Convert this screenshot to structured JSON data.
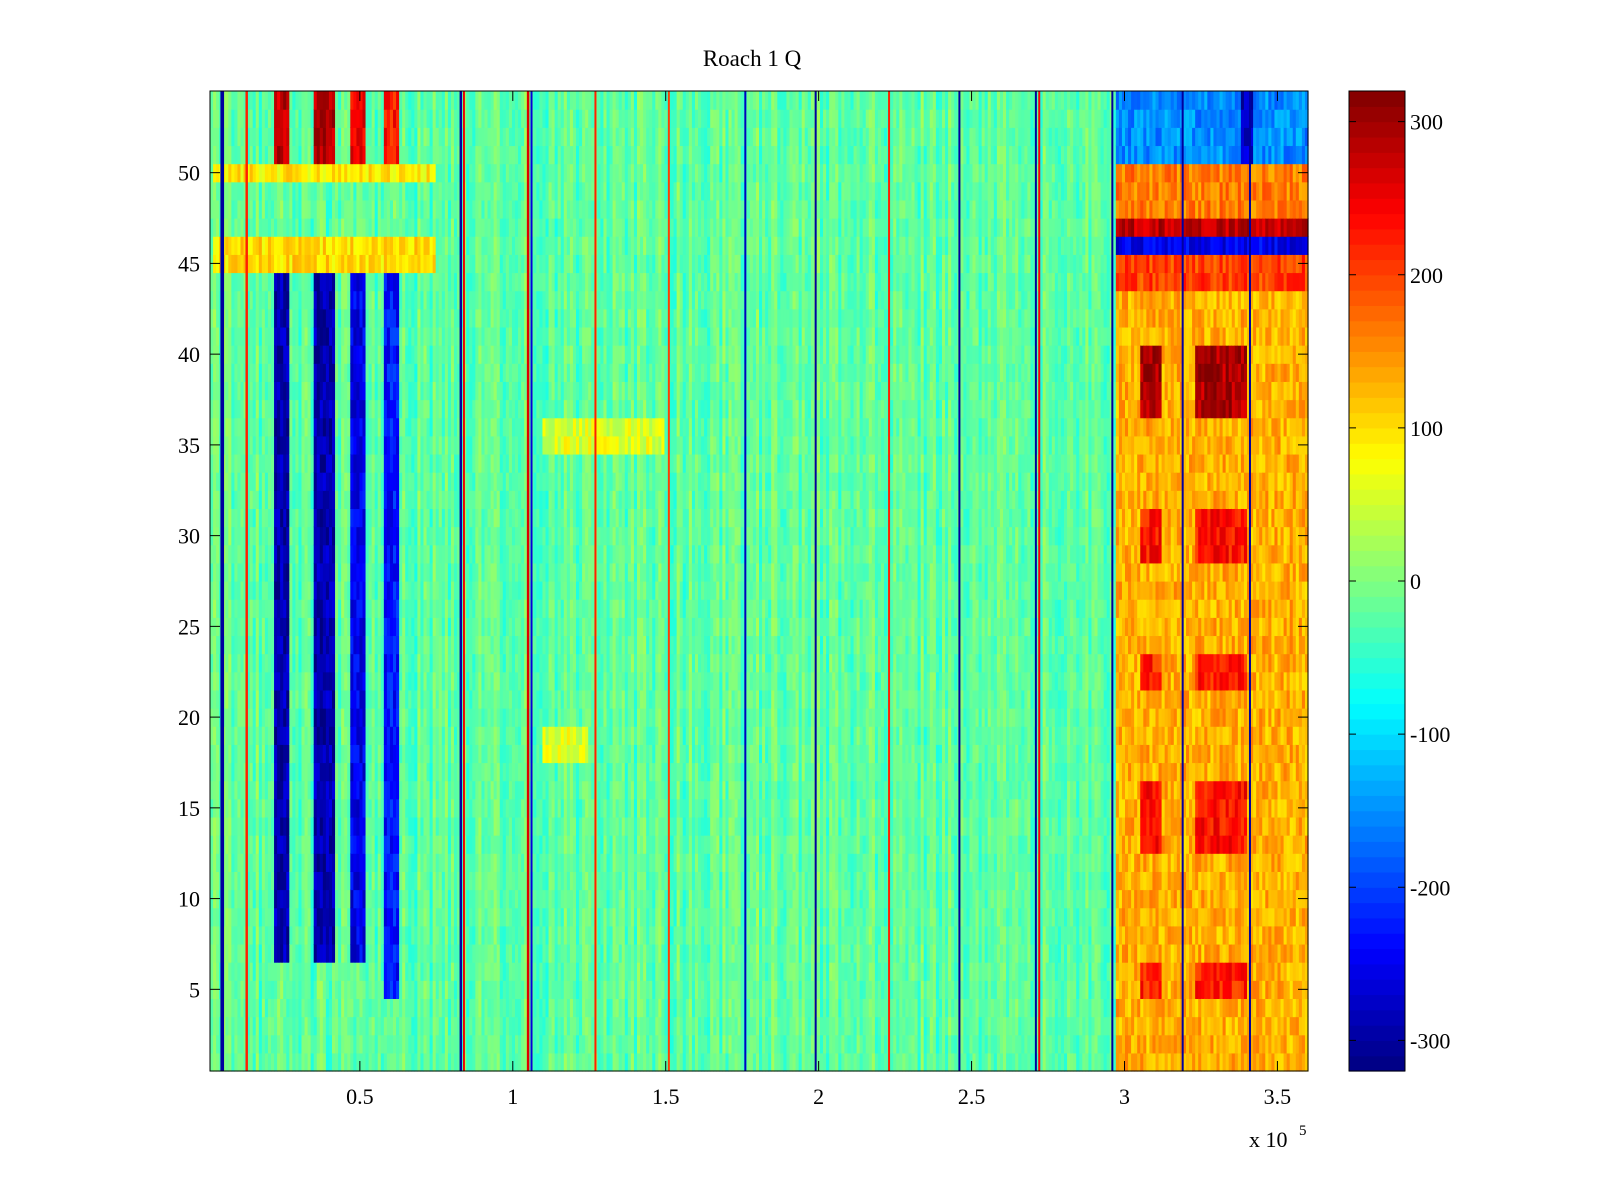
{
  "chart_data": {
    "type": "heatmap",
    "title": "Roach 1 Q",
    "xlabel": "",
    "ylabel": "",
    "x_exponent_label": {
      "base": "x 10",
      "exponent": "5"
    },
    "x_range": [
      0.01,
      3.6
    ],
    "y_range": [
      0.5,
      54.5
    ],
    "x_ticks": [
      {
        "value": 0.5,
        "label": "0.5"
      },
      {
        "value": 1.0,
        "label": "1"
      },
      {
        "value": 1.5,
        "label": "1.5"
      },
      {
        "value": 2.0,
        "label": "2"
      },
      {
        "value": 2.5,
        "label": "2.5"
      },
      {
        "value": 3.0,
        "label": "3"
      },
      {
        "value": 3.5,
        "label": "3.5"
      }
    ],
    "y_ticks": [
      {
        "value": 5,
        "label": "5"
      },
      {
        "value": 10,
        "label": "10"
      },
      {
        "value": 15,
        "label": "15"
      },
      {
        "value": 20,
        "label": "20"
      },
      {
        "value": 25,
        "label": "25"
      },
      {
        "value": 30,
        "label": "30"
      },
      {
        "value": 35,
        "label": "35"
      },
      {
        "value": 40,
        "label": "40"
      },
      {
        "value": 45,
        "label": "45"
      },
      {
        "value": 50,
        "label": "50"
      }
    ],
    "colorbar": {
      "colormap": "jet",
      "range": [
        -320,
        320
      ],
      "ticks": [
        {
          "value": 300,
          "label": "300"
        },
        {
          "value": 200,
          "label": "200"
        },
        {
          "value": 100,
          "label": "100"
        },
        {
          "value": 0,
          "label": "0"
        },
        {
          "value": -100,
          "label": "-100"
        },
        {
          "value": -200,
          "label": "-200"
        },
        {
          "value": -300,
          "label": "-300"
        }
      ]
    },
    "rows": 54,
    "columns": 360,
    "baseline_value": -20,
    "noise_amplitude": 40,
    "spike_lines": [
      {
        "x": 0.05,
        "value": -300,
        "width": 0.012
      },
      {
        "x": 0.13,
        "value": 220,
        "width": 0.008
      },
      {
        "x": 0.83,
        "value": -300,
        "width": 0.008
      },
      {
        "x": 0.84,
        "value": 250,
        "width": 0.006
      },
      {
        "x": 1.05,
        "value": 260,
        "width": 0.008
      },
      {
        "x": 1.06,
        "value": -260,
        "width": 0.004
      },
      {
        "x": 1.27,
        "value": 220,
        "width": 0.006
      },
      {
        "x": 1.51,
        "value": 200,
        "width": 0.006
      },
      {
        "x": 1.76,
        "value": -280,
        "width": 0.006
      },
      {
        "x": 1.99,
        "value": -300,
        "width": 0.006
      },
      {
        "x": 2.23,
        "value": 220,
        "width": 0.006
      },
      {
        "x": 2.46,
        "value": -300,
        "width": 0.006
      },
      {
        "x": 2.71,
        "value": -300,
        "width": 0.006
      },
      {
        "x": 2.72,
        "value": 240,
        "width": 0.004
      },
      {
        "x": 2.96,
        "value": -300,
        "width": 0.006
      },
      {
        "x": 3.19,
        "value": -300,
        "width": 0.006
      },
      {
        "x": 3.41,
        "value": -300,
        "width": 0.006
      }
    ],
    "regions": [
      {
        "x": [
          0.22,
          0.27
        ],
        "y": [
          7,
          46
        ],
        "value": -290
      },
      {
        "x": [
          0.35,
          0.42
        ],
        "y": [
          7,
          46
        ],
        "value": -290
      },
      {
        "x": [
          0.47,
          0.52
        ],
        "y": [
          7,
          46
        ],
        "value": -250
      },
      {
        "x": [
          0.58,
          0.63
        ],
        "y": [
          5,
          46
        ],
        "value": -230
      },
      {
        "x": [
          0.22,
          0.27
        ],
        "y": [
          50,
          54.5
        ],
        "value": 280
      },
      {
        "x": [
          0.35,
          0.42
        ],
        "y": [
          50,
          54.5
        ],
        "value": 290
      },
      {
        "x": [
          0.47,
          0.52
        ],
        "y": [
          50,
          54.5
        ],
        "value": 250
      },
      {
        "x": [
          0.58,
          0.63
        ],
        "y": [
          50,
          54.5
        ],
        "value": 230
      },
      {
        "x": [
          0.02,
          0.75
        ],
        "y": [
          45,
          46
        ],
        "value": 100
      },
      {
        "x": [
          0.02,
          0.75
        ],
        "y": [
          49.5,
          50.5
        ],
        "value": 90
      },
      {
        "x": [
          1.1,
          1.5
        ],
        "y": [
          34.5,
          36
        ],
        "value": 60
      },
      {
        "x": [
          1.1,
          1.25
        ],
        "y": [
          18,
          19
        ],
        "value": 60
      },
      {
        "x": [
          2.97,
          3.6
        ],
        "y": [
          1,
          46
        ],
        "value": 130
      },
      {
        "x": [
          3.05,
          3.12
        ],
        "y": [
          36.5,
          40.5
        ],
        "value": 290
      },
      {
        "x": [
          3.23,
          3.4
        ],
        "y": [
          36.5,
          40.5
        ],
        "value": 290
      },
      {
        "x": [
          3.05,
          3.12
        ],
        "y": [
          28.5,
          31
        ],
        "value": 230
      },
      {
        "x": [
          3.23,
          3.4
        ],
        "y": [
          28.5,
          31
        ],
        "value": 230
      },
      {
        "x": [
          3.05,
          3.12
        ],
        "y": [
          22,
          23.5
        ],
        "value": 220
      },
      {
        "x": [
          3.23,
          3.4
        ],
        "y": [
          22,
          23.5
        ],
        "value": 220
      },
      {
        "x": [
          3.05,
          3.12
        ],
        "y": [
          12.5,
          16.5
        ],
        "value": 230
      },
      {
        "x": [
          3.23,
          3.4
        ],
        "y": [
          12.5,
          16.5
        ],
        "value": 230
      },
      {
        "x": [
          3.05,
          3.12
        ],
        "y": [
          5,
          6
        ],
        "value": 220
      },
      {
        "x": [
          3.23,
          3.4
        ],
        "y": [
          5,
          6
        ],
        "value": 220
      },
      {
        "x": [
          2.97,
          3.6
        ],
        "y": [
          44,
          45
        ],
        "value": 200
      },
      {
        "x": [
          2.97,
          3.6
        ],
        "y": [
          46.5,
          47.5
        ],
        "value": 280
      },
      {
        "x": [
          2.97,
          3.6
        ],
        "y": [
          45.5,
          46.5
        ],
        "value": -250
      },
      {
        "x": [
          2.97,
          3.6
        ],
        "y": [
          48,
          50.5
        ],
        "value": 160
      },
      {
        "x": [
          2.97,
          3.6
        ],
        "y": [
          50.5,
          54.5
        ],
        "value": -150
      },
      {
        "x": [
          3.38,
          3.42
        ],
        "y": [
          50.5,
          54.5
        ],
        "value": -280
      }
    ]
  }
}
